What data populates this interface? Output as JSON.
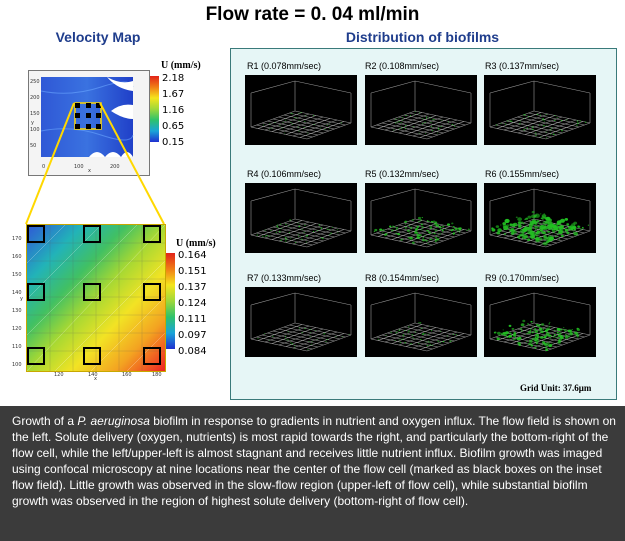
{
  "title": "Flow rate = 0. 04 ml/min",
  "velocity_map": {
    "heading": "Velocity Map",
    "top": {
      "legend_title": "U (mm/s)",
      "legend_values": [
        "2.18",
        "1.67",
        "1.16",
        "0.65",
        "0.15"
      ],
      "y_ticks": [
        "250",
        "200",
        "150",
        "100",
        "50"
      ],
      "x_ticks": [
        "0",
        "100",
        "200"
      ],
      "x_axis": "x",
      "y_axis": "y"
    },
    "bottom": {
      "legend_title": "U (mm/s)",
      "legend_values": [
        "0.164",
        "0.151",
        "0.137",
        "0.124",
        "0.111",
        "0.097",
        "0.084"
      ],
      "y_ticks": [
        "170",
        "160",
        "150",
        "140",
        "130",
        "120",
        "110",
        "100"
      ],
      "x_ticks": [
        "120",
        "140",
        "160",
        "180"
      ],
      "x_axis": "x",
      "y_axis": "y"
    }
  },
  "biofilms": {
    "heading": "Distribution of biofilms",
    "panels": [
      {
        "label": "R1 (0.078mm/sec)",
        "density": 0.05
      },
      {
        "label": "R2 (0.108mm/sec)",
        "density": 0.08
      },
      {
        "label": "R3 (0.137mm/sec)",
        "density": 0.12
      },
      {
        "label": "R4 (0.106mm/sec)",
        "density": 0.12
      },
      {
        "label": "R5 (0.132mm/sec)",
        "density": 0.35
      },
      {
        "label": "R6 (0.155mm/sec)",
        "density": 0.7
      },
      {
        "label": "R7 (0.133mm/sec)",
        "density": 0.05
      },
      {
        "label": "R8 (0.154mm/sec)",
        "density": 0.12
      },
      {
        "label": "R9 (0.170mm/sec)",
        "density": 0.45
      }
    ],
    "grid_unit": "Grid Unit: 37.6μm"
  },
  "caption": {
    "before": "Growth of a ",
    "italic": "P. aeruginosa",
    "after": " biofilm in response to gradients in nutrient and oxygen influx. The flow field is shown on the left. Solute delivery (oxygen, nutrients) is most rapid towards the right, and particularly the bottom-right of the flow cell, while the left/upper-left is almost stagnant and receives little nutrient influx. Biofilm growth was imaged using confocal microscopy at nine locations near the center of the flow cell (marked as black boxes on the inset flow field). Little growth was observed in the slow-flow region (upper-left of flow cell), while substantial biofilm growth was observed in the region of highest solute delivery (bottom-right of flow cell)."
  },
  "colors": {
    "heading_blue": "#1f3d8c",
    "panel_bg": "#e6f6f6",
    "caption_bg": "#3b3b3b",
    "biofilm_green": "#22c022"
  }
}
